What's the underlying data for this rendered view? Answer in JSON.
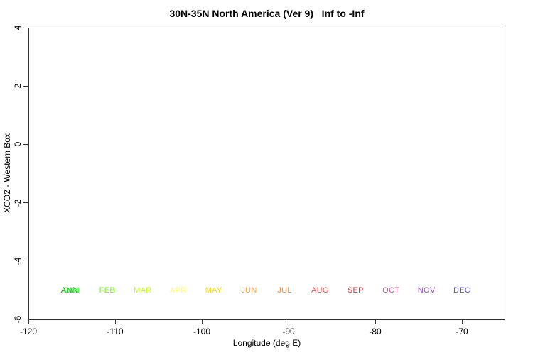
{
  "title": "30N-35N North America (Ver 9)   Inf to -Inf",
  "axes": {
    "x": {
      "label": "Longitude (deg E)",
      "min": -120,
      "max": -65,
      "ticks": [
        -120,
        -110,
        -100,
        -90,
        -80,
        -70
      ]
    },
    "y": {
      "label": "XCO2 - Western Box",
      "min": -6,
      "max": 4,
      "ticks": [
        4,
        2,
        0,
        -2,
        -4,
        -6
      ]
    }
  },
  "chart_data": {
    "type": "scatter",
    "title": "30N-35N North America (Ver 9)   Inf to -Inf",
    "xlabel": "Longitude (deg E)",
    "ylabel": "XCO2 - Western Box",
    "xlim": [
      -120,
      -65
    ],
    "ylim": [
      -6,
      4
    ],
    "grid": false,
    "series": [],
    "notes": "Plot area is empty; no data points are drawn. A row of colored month legend labels sits at y = -5. ANN and JAN overlap at the far left.",
    "legend_months": [
      {
        "label": "ANN",
        "x": -115.25,
        "y": -5,
        "color": "#00b300"
      },
      {
        "label": "JAN",
        "x": -115.0,
        "y": -5,
        "color": "#2ee62e"
      },
      {
        "label": "FEB",
        "x": -110.91,
        "y": -5,
        "color": "#66ff00"
      },
      {
        "label": "MAR",
        "x": -106.82,
        "y": -5,
        "color": "#bfff00"
      },
      {
        "label": "APR",
        "x": -102.73,
        "y": -5,
        "color": "#ffff4d"
      },
      {
        "label": "MAY",
        "x": -98.64,
        "y": -5,
        "color": "#ffd700"
      },
      {
        "label": "JUN",
        "x": -94.55,
        "y": -5,
        "color": "#ffa640"
      },
      {
        "label": "JUL",
        "x": -90.45,
        "y": -5,
        "color": "#ff8833"
      },
      {
        "label": "AUG",
        "x": -86.36,
        "y": -5,
        "color": "#ff4d4d"
      },
      {
        "label": "SEP",
        "x": -82.27,
        "y": -5,
        "color": "#e62e2e"
      },
      {
        "label": "OCT",
        "x": -78.18,
        "y": -5,
        "color": "#cc5299"
      },
      {
        "label": "NOV",
        "x": -74.09,
        "y": -5,
        "color": "#9852c7"
      },
      {
        "label": "DEC",
        "x": -70.0,
        "y": -5,
        "color": "#5c50db"
      }
    ]
  }
}
